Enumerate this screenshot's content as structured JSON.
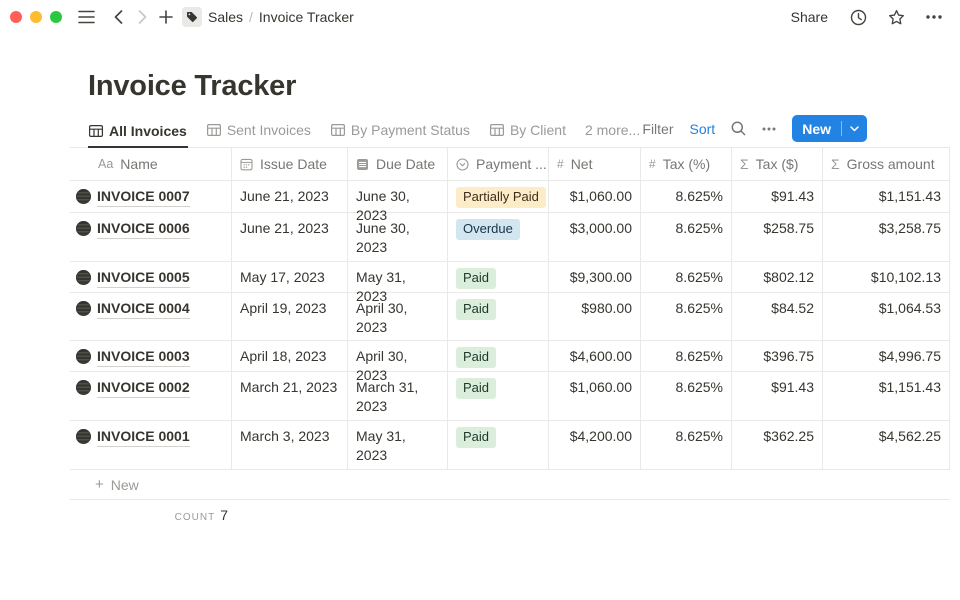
{
  "titlebar": {
    "breadcrumb": {
      "parent": "Sales",
      "separator": "/",
      "current": "Invoice Tracker"
    },
    "share_label": "Share"
  },
  "page": {
    "title": "Invoice Tracker"
  },
  "tabs": [
    {
      "label": "All Invoices",
      "active": true
    },
    {
      "label": "Sent Invoices",
      "active": false
    },
    {
      "label": "By Payment Status",
      "active": false
    },
    {
      "label": "By Client",
      "active": false
    }
  ],
  "more_tabs_label": "2 more...",
  "toolbar": {
    "filter": "Filter",
    "sort": "Sort",
    "new": "New"
  },
  "table": {
    "columns": [
      {
        "key": "name",
        "label": "Name",
        "icon": "text-icon"
      },
      {
        "key": "issue",
        "label": "Issue Date",
        "icon": "calendar-icon"
      },
      {
        "key": "due",
        "label": "Due Date",
        "icon": "lined-page-icon"
      },
      {
        "key": "payment",
        "label": "Payment ...",
        "icon": "select-icon"
      },
      {
        "key": "net",
        "label": "Net",
        "icon": "number-icon"
      },
      {
        "key": "taxpct",
        "label": "Tax (%)",
        "icon": "number-icon"
      },
      {
        "key": "taxusd",
        "label": "Tax ($)",
        "icon": "formula-icon"
      },
      {
        "key": "gross",
        "label": "Gross amount",
        "icon": "formula-icon"
      }
    ],
    "rows": [
      {
        "name": "INVOICE 0007",
        "issue_date": "June 21, 2023",
        "due_date": "June 30, 2023",
        "status": "Partially Paid",
        "net": "$1,060.00",
        "tax_pct": "8.625%",
        "tax_usd": "$91.43",
        "gross": "$1,151.43"
      },
      {
        "name": "INVOICE 0006",
        "issue_date": "June 21, 2023",
        "due_date": "June 30, 2023",
        "status": "Overdue",
        "net": "$3,000.00",
        "tax_pct": "8.625%",
        "tax_usd": "$258.75",
        "gross": "$3,258.75"
      },
      {
        "name": "INVOICE 0005",
        "issue_date": "May 17, 2023",
        "due_date": "May 31, 2023",
        "status": "Paid",
        "net": "$9,300.00",
        "tax_pct": "8.625%",
        "tax_usd": "$802.12",
        "gross": "$10,102.13"
      },
      {
        "name": "INVOICE 0004",
        "issue_date": "April 19, 2023",
        "due_date": "April 30, 2023",
        "status": "Paid",
        "net": "$980.00",
        "tax_pct": "8.625%",
        "tax_usd": "$84.52",
        "gross": "$1,064.53"
      },
      {
        "name": "INVOICE 0003",
        "issue_date": "April 18, 2023",
        "due_date": "April 30, 2023",
        "status": "Paid",
        "net": "$4,600.00",
        "tax_pct": "8.625%",
        "tax_usd": "$396.75",
        "gross": "$4,996.75"
      },
      {
        "name": "INVOICE 0002",
        "issue_date": "March 21, 2023",
        "due_date": "March 31, 2023",
        "status": "Paid",
        "net": "$1,060.00",
        "tax_pct": "8.625%",
        "tax_usd": "$91.43",
        "gross": "$1,151.43"
      },
      {
        "name": "INVOICE 0001",
        "issue_date": "March 3, 2023",
        "due_date": "May 31, 2023",
        "status": "Paid",
        "net": "$4,200.00",
        "tax_pct": "8.625%",
        "tax_usd": "$362.25",
        "gross": "$4,562.25"
      }
    ],
    "new_row_label": "New",
    "count_label": "COUNT",
    "count_value": "7"
  },
  "colors": {
    "accent_blue": "#2383e2",
    "status": {
      "Partially Paid": {
        "bg": "#fdecc8",
        "fg": "#402c1b"
      },
      "Overdue": {
        "bg": "#d3e5ef",
        "fg": "#183347"
      },
      "Paid": {
        "bg": "#dbeddb",
        "fg": "#1c3829"
      }
    }
  }
}
